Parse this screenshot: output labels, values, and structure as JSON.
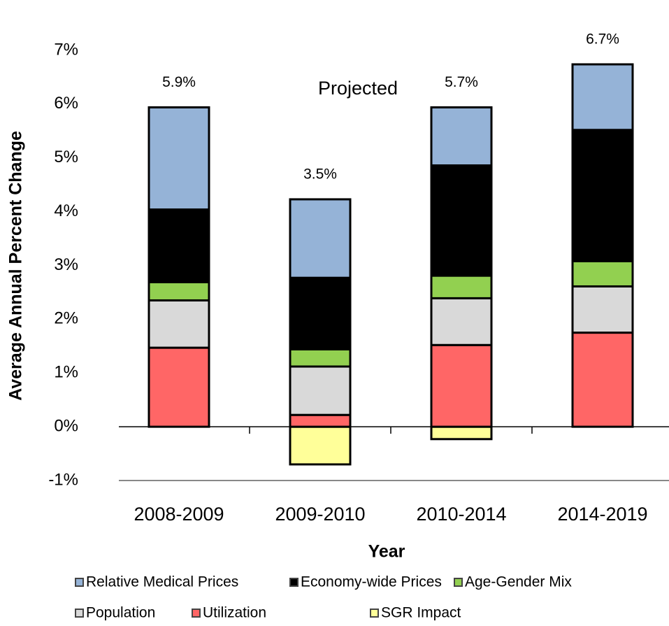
{
  "chart_data": {
    "type": "stacked_bar",
    "x_label": "Year",
    "y_label": "Average Annual Percent Change",
    "annotation": "Projected",
    "categories": [
      "2008-2009",
      "2009-2010",
      "2010-2014",
      "2014-2019"
    ],
    "total_labels": [
      "5.9%",
      "3.5%",
      "5.7%",
      "6.7%"
    ],
    "series": [
      {
        "name": "SGR Impact",
        "color": "#ffff99",
        "values": [
          0,
          -0.7,
          -0.23,
          0
        ]
      },
      {
        "name": "Utilization",
        "color": "#ff6666",
        "values": [
          1.47,
          0.22,
          1.52,
          1.75
        ]
      },
      {
        "name": "Population",
        "color": "#d9d9d9",
        "values": [
          0.88,
          0.9,
          0.87,
          0.86
        ]
      },
      {
        "name": "Age-Gender Mix",
        "color": "#92d050",
        "values": [
          0.34,
          0.32,
          0.42,
          0.47
        ]
      },
      {
        "name": "Economy-wide Prices",
        "color": "#000000",
        "values": [
          1.35,
          1.33,
          2.05,
          2.44
        ]
      },
      {
        "name": "Relative Medical Prices",
        "color": "#95b3d7",
        "values": [
          1.9,
          1.46,
          1.08,
          1.22
        ]
      }
    ],
    "ylim": [
      -1,
      7
    ],
    "yticks": [
      {
        "value": -1,
        "label": "-1%"
      },
      {
        "value": 0,
        "label": "0%"
      },
      {
        "value": 1,
        "label": "1%"
      },
      {
        "value": 2,
        "label": "2%"
      },
      {
        "value": 3,
        "label": "3%"
      },
      {
        "value": 4,
        "label": "4%"
      },
      {
        "value": 5,
        "label": "5%"
      },
      {
        "value": 6,
        "label": "6%"
      },
      {
        "value": 7,
        "label": "7%"
      }
    ]
  }
}
